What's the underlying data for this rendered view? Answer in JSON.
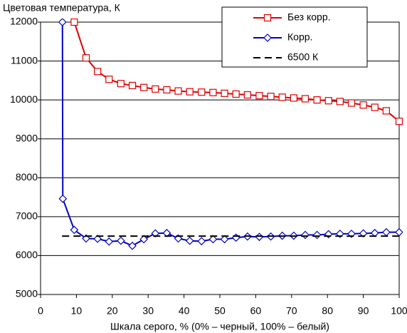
{
  "chart_data": {
    "type": "line",
    "title": "Цветовая температура, К",
    "x_label": "Шкала серого, % (0% – черный, 100% – белый)",
    "xlim": [
      0,
      100
    ],
    "xticks": [
      0,
      10,
      20,
      30,
      40,
      50,
      60,
      70,
      80,
      90,
      100
    ],
    "ylim": [
      5000,
      12000
    ],
    "yticks": [
      5000,
      6000,
      7000,
      8000,
      9000,
      10000,
      11000,
      12000
    ],
    "grid": true,
    "legend": "upper right",
    "series": [
      {
        "name": "Без корр.",
        "color": "#e00000",
        "marker": "square",
        "x": [
          9.4,
          12.7,
          15.9,
          19.1,
          22.4,
          25.6,
          28.8,
          32,
          35.2,
          38.4,
          41.6,
          44.9,
          48.1,
          51.3,
          54.5,
          57.7,
          61,
          64.2,
          67.4,
          70.6,
          73.8,
          77.1,
          80.3,
          83.5,
          86.7,
          90,
          93.2,
          96.4,
          100
        ],
        "values": [
          12000,
          11080,
          10730,
          10530,
          10420,
          10370,
          10320,
          10280,
          10260,
          10230,
          10210,
          10200,
          10190,
          10170,
          10150,
          10130,
          10110,
          10090,
          10070,
          10050,
          10030,
          10000,
          9980,
          9960,
          9920,
          9870,
          9810,
          9720,
          9450
        ]
      },
      {
        "name": "Корр.",
        "color": "#0000c0",
        "marker": "diamond",
        "x": [
          6.1,
          6.2,
          9.4,
          12.7,
          15.9,
          19.1,
          22.4,
          25.6,
          28.8,
          32,
          35.2,
          38.4,
          41.6,
          44.9,
          48.1,
          51.3,
          54.5,
          57.7,
          61,
          64.2,
          67.4,
          70.6,
          73.8,
          77.1,
          80.3,
          83.5,
          86.7,
          90,
          93.2,
          96.4,
          100
        ],
        "values": [
          12000,
          7460,
          6660,
          6440,
          6430,
          6360,
          6380,
          6250,
          6420,
          6570,
          6580,
          6440,
          6380,
          6370,
          6420,
          6420,
          6460,
          6490,
          6480,
          6490,
          6510,
          6510,
          6530,
          6530,
          6550,
          6560,
          6560,
          6570,
          6580,
          6600,
          6600
        ]
      },
      {
        "name": "6500 К",
        "color": "#000000",
        "marker": "none",
        "dash": true,
        "x": [
          6,
          100
        ],
        "values": [
          6500,
          6500
        ]
      }
    ]
  }
}
